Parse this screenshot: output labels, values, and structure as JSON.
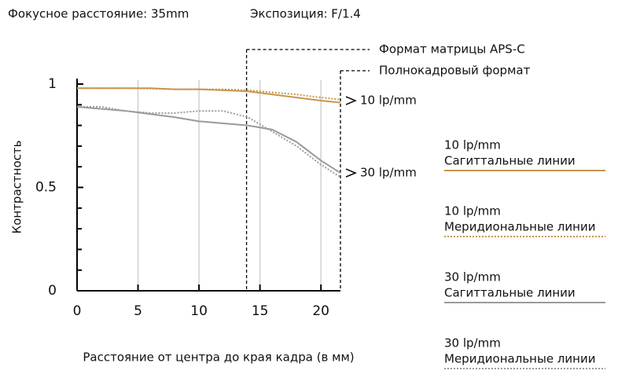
{
  "chart_data": {
    "type": "line",
    "title": "Фокусное расстояние: 35mm",
    "subtitle": "Экспозиция: F/1.4",
    "xlabel": "Расстояние от центра до края кадра (в мм)",
    "ylabel": "Контрастность",
    "x": [
      0,
      2,
      4,
      6,
      8,
      10,
      12,
      14,
      16,
      18,
      20,
      21.6
    ],
    "series": [
      {
        "name": "10 lp/mm",
        "lines": "Сагиттальные линии",
        "color": "#c8964e",
        "style": "solid",
        "values": [
          0.98,
          0.98,
          0.98,
          0.98,
          0.975,
          0.975,
          0.97,
          0.965,
          0.95,
          0.935,
          0.92,
          0.91
        ]
      },
      {
        "name": "10 lp/mm",
        "lines": "Меридиональные линии",
        "color": "#c8964e",
        "style": "dotted",
        "values": [
          0.98,
          0.98,
          0.98,
          0.978,
          0.975,
          0.975,
          0.975,
          0.97,
          0.96,
          0.95,
          0.935,
          0.925
        ]
      },
      {
        "name": "30 lp/mm",
        "lines": "Сагиттальные линии",
        "color": "#9a9a9a",
        "style": "solid",
        "values": [
          0.89,
          0.88,
          0.87,
          0.855,
          0.84,
          0.82,
          0.81,
          0.8,
          0.78,
          0.72,
          0.63,
          0.57
        ]
      },
      {
        "name": "30 lp/mm",
        "lines": "Меридиональные линии",
        "color": "#9a9a9a",
        "style": "dotted",
        "values": [
          0.89,
          0.89,
          0.87,
          0.86,
          0.86,
          0.87,
          0.87,
          0.84,
          0.77,
          0.7,
          0.61,
          0.55
        ]
      }
    ],
    "xlim": [
      0,
      21.6
    ],
    "ylim": [
      0,
      1
    ],
    "xticks": [
      0,
      5,
      10,
      15,
      20
    ],
    "yticks": [
      0,
      0.5,
      1
    ],
    "yminorticks": [
      0.1,
      0.2,
      0.3,
      0.4,
      0.6,
      0.7,
      0.8,
      0.9
    ],
    "grid": true,
    "markers": [
      {
        "x": 13.9,
        "label": "Формат матрицы APS-C"
      },
      {
        "x": 21.6,
        "label": "Полнокадровый формат"
      }
    ],
    "annotations": [
      {
        "text": "10 lp/mm",
        "y": 0.92
      },
      {
        "text": "30 lp/mm",
        "y": 0.57
      }
    ]
  }
}
